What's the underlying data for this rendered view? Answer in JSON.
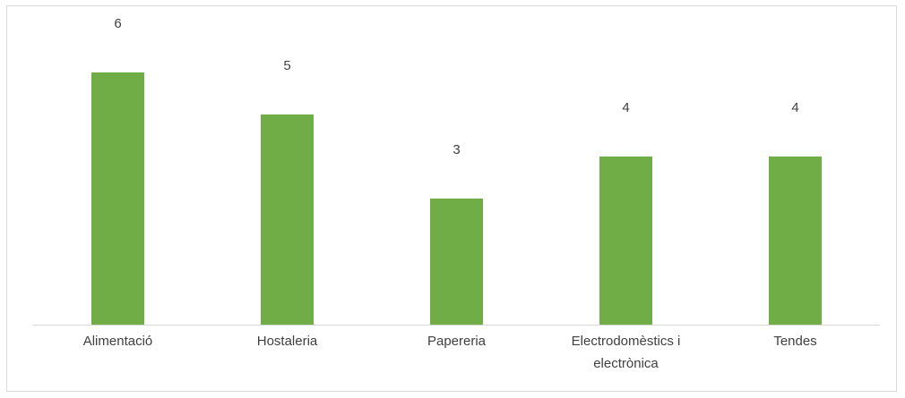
{
  "chart_data": {
    "type": "bar",
    "title": "",
    "xlabel": "",
    "ylabel": "",
    "categories": [
      [
        "Alimentació"
      ],
      [
        "Hostaleria"
      ],
      [
        "Papereria"
      ],
      [
        "Electrodomèstics i",
        "electrònica"
      ],
      [
        "Tendes"
      ]
    ],
    "values": [
      6,
      5,
      3,
      4,
      4
    ],
    "ylim": [
      0,
      7
    ],
    "grid": false,
    "legend": "none",
    "colors": {
      "bar": "#70ad47",
      "axis": "#d9d9d9",
      "text": "#404040"
    }
  }
}
